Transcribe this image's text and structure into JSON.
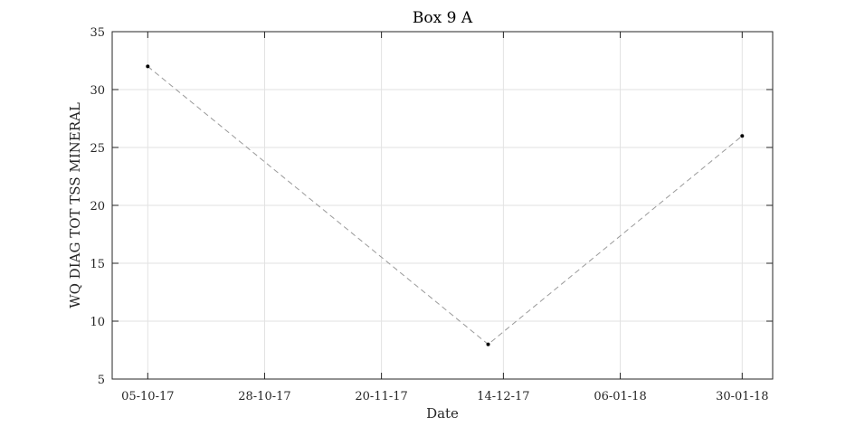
{
  "chart_data": {
    "type": "line",
    "title": "Box 9 A",
    "xlabel": "Date",
    "ylabel": "WQ DIAG TOT TSS MINERAL",
    "x_type": "date",
    "x_tick_format": "DD-MM-YY",
    "xlim": [
      "2017-09-28",
      "2018-02-05"
    ],
    "ylim": [
      5,
      35
    ],
    "x_ticks": [
      "2017-10-05",
      "2017-10-28",
      "2017-11-20",
      "2017-12-14",
      "2018-01-06",
      "2018-01-30"
    ],
    "x_tick_labels": [
      "05-10-17",
      "28-10-17",
      "20-11-17",
      "14-12-17",
      "06-01-18",
      "30-01-18"
    ],
    "y_ticks": [
      5,
      10,
      15,
      20,
      25,
      30,
      35
    ],
    "y_tick_labels": [
      "5",
      "10",
      "15",
      "20",
      "25",
      "30",
      "35"
    ],
    "grid": true,
    "series": [
      {
        "line_style": "dashed",
        "line_color": "#999999",
        "marker_color": "#000000",
        "points": [
          {
            "x": "2017-10-05",
            "y": 32
          },
          {
            "x": "2017-12-11",
            "y": 8
          },
          {
            "x": "2018-01-30",
            "y": 26
          }
        ]
      }
    ]
  }
}
